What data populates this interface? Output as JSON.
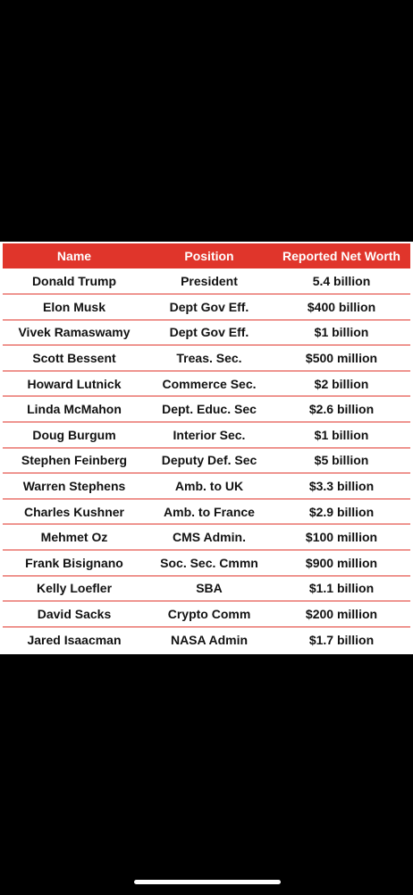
{
  "table": {
    "headers": {
      "name": "Name",
      "position": "Position",
      "net_worth": "Reported Net Worth"
    },
    "rows": [
      {
        "name": "Donald Trump",
        "position": "President",
        "net_worth": "5.4 billion"
      },
      {
        "name": "Elon Musk",
        "position": "Dept Gov Eff.",
        "net_worth": "$400 billion"
      },
      {
        "name": "Vivek Ramaswamy",
        "position": "Dept Gov Eff.",
        "net_worth": "$1 billion"
      },
      {
        "name": "Scott Bessent",
        "position": "Treas. Sec.",
        "net_worth": "$500 million"
      },
      {
        "name": "Howard Lutnick",
        "position": "Commerce Sec.",
        "net_worth": "$2 billion"
      },
      {
        "name": "Linda McMahon",
        "position": "Dept. Educ. Sec",
        "net_worth": "$2.6 billion"
      },
      {
        "name": "Doug Burgum",
        "position": "Interior Sec.",
        "net_worth": "$1 billion"
      },
      {
        "name": "Stephen Feinberg",
        "position": "Deputy Def. Sec",
        "net_worth": "$5 billion"
      },
      {
        "name": "Warren Stephens",
        "position": "Amb. to UK",
        "net_worth": "$3.3 billion"
      },
      {
        "name": "Charles Kushner",
        "position": "Amb. to France",
        "net_worth": "$2.9 billion"
      },
      {
        "name": "Mehmet Oz",
        "position": "CMS Admin.",
        "net_worth": "$100 million"
      },
      {
        "name": "Frank Bisignano",
        "position": "Soc. Sec. Cmmn",
        "net_worth": "$900 million"
      },
      {
        "name": "Kelly Loefler",
        "position": "SBA",
        "net_worth": "$1.1 billion"
      },
      {
        "name": "David Sacks",
        "position": "Crypto Comm",
        "net_worth": "$200 million"
      },
      {
        "name": "Jared Isaacman",
        "position": "NASA Admin",
        "net_worth": "$1.7 billion"
      }
    ]
  },
  "colors": {
    "header_red": "#e0352b",
    "background": "#000000"
  }
}
